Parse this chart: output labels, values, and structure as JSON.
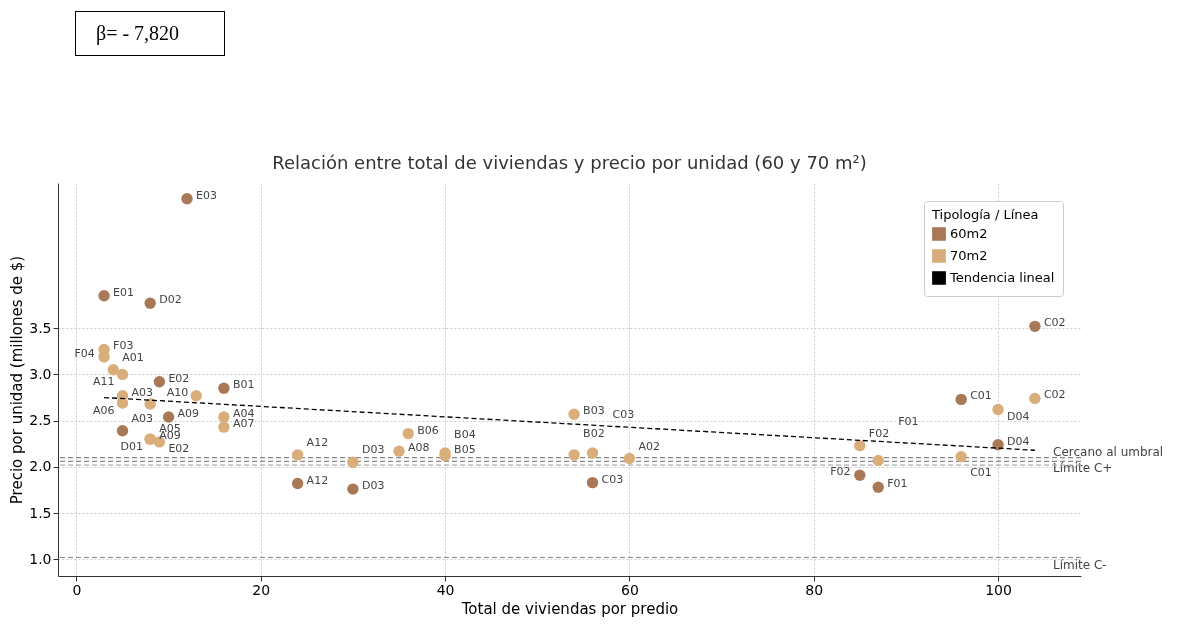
{
  "chart_data": {
    "type": "scatter",
    "title": "Relación entre total de viviendas y precio por unidad (60 y 70 m²)",
    "xlabel": "Total de viviendas por predio",
    "ylabel": "Precio por unidad (millones de $)",
    "legend_title": "Tipología / Línea",
    "legend": "top right",
    "grid": true,
    "marker": "circle",
    "annotations": [
      "β= - 7,820"
    ],
    "xlim": [
      -2,
      109
    ],
    "ylim": [
      0.82,
      5.07
    ],
    "xticks": [
      0,
      20,
      40,
      60,
      80,
      100
    ],
    "yticks": [
      {
        "value": 1,
        "label": "1.0"
      },
      {
        "value": 1.5,
        "label": "1.5"
      },
      {
        "value": 2,
        "label": "2.0"
      },
      {
        "value": 2.5,
        "label": "2.5"
      },
      {
        "value": 3,
        "label": "3.0"
      },
      {
        "value": 3.5,
        "label": "3.5"
      }
    ],
    "ref_lines": [
      {
        "axis": "y",
        "value": 2.1,
        "label": "Cercano al umbral",
        "color": "#888888",
        "line_style": "dashed"
      },
      {
        "axis": "y",
        "value": 2.06,
        "label": "Límite C+",
        "color": "#888888",
        "line_style": "dashed"
      },
      {
        "axis": "y",
        "value": 2.02,
        "color": "#aaaaaa",
        "line_style": "dashed"
      },
      {
        "axis": "y",
        "value": 1.02,
        "label": "Límite C-",
        "color": "#888888",
        "line_style": "dashed"
      }
    ],
    "series": [
      {
        "name": "60m2",
        "color": "#a87857",
        "x": [
          12,
          3,
          8,
          9,
          16,
          10,
          5,
          24,
          30,
          56,
          104,
          96,
          100,
          85,
          87
        ],
        "values": [
          4.9,
          3.85,
          3.77,
          2.92,
          2.85,
          2.54,
          2.39,
          1.82,
          1.76,
          1.83,
          3.52,
          2.73,
          2.24,
          1.91,
          1.78
        ],
        "value_labels": [
          "E03",
          "E01",
          "D02",
          "E02",
          "B01",
          "A09",
          "A03",
          "A12",
          "D03",
          "C03",
          "C02",
          "C01",
          "D04",
          "F02",
          "F01"
        ]
      },
      {
        "name": "70m2",
        "color": "#d9ae7a",
        "x": [
          3,
          3,
          4,
          5,
          5,
          5,
          8,
          13,
          16,
          16,
          8,
          8,
          9,
          24,
          30,
          35,
          36,
          40,
          40,
          54,
          54,
          56,
          60,
          85,
          87,
          96,
          100,
          104
        ],
        "values": [
          3.27,
          3.19,
          3.05,
          3.0,
          2.77,
          2.69,
          2.68,
          2.77,
          2.54,
          2.43,
          2.3,
          2.3,
          2.27,
          2.13,
          2.05,
          2.17,
          2.36,
          2.15,
          2.12,
          2.57,
          2.13,
          2.15,
          2.09,
          2.23,
          2.07,
          2.11,
          2.62,
          2.74
        ],
        "value_labels": [
          "F03",
          "F04",
          "A01",
          "A11",
          "A03",
          "A06",
          "A05",
          "A10",
          "A04",
          "A07",
          "D01",
          "A09",
          "E02",
          "A12",
          "D03",
          "A08",
          "B06",
          "B05",
          "B04",
          "B03",
          "B02",
          "C03",
          "A02",
          "F02",
          "F01",
          "C01",
          "D04",
          "C02"
        ]
      },
      {
        "name": "Tendencia lineal",
        "type": "line",
        "marker": "none",
        "color": "#000000",
        "line_style": "dashed",
        "x": [
          3,
          104
        ],
        "values": [
          2.75,
          2.18
        ]
      }
    ]
  }
}
